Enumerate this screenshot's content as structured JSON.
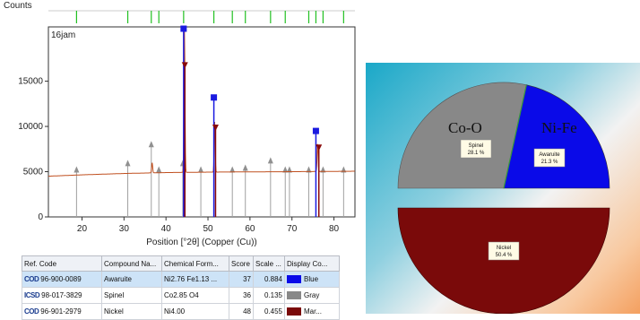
{
  "chart_data": [
    {
      "type": "line",
      "title": "",
      "sample_label": "16jam",
      "ylabel": "Counts",
      "xlabel": "Position [°2θ] (Copper (Cu))",
      "xlim": [
        12,
        85
      ],
      "ylim": [
        0,
        21000
      ],
      "x_ticks": [
        20,
        30,
        40,
        50,
        60,
        70,
        80
      ],
      "y_ticks": [
        0,
        5000,
        10000,
        15000
      ],
      "baseline": [
        [
          12,
          4500
        ],
        [
          20,
          4650
        ],
        [
          30,
          4800
        ],
        [
          40,
          4900
        ],
        [
          50,
          4950
        ],
        [
          60,
          4980
        ],
        [
          70,
          5000
        ],
        [
          85,
          5050
        ]
      ],
      "peaks": [
        {
          "x": 44.4,
          "y": 20500
        },
        {
          "x": 51.6,
          "y": 10500
        },
        {
          "x": 76.1,
          "y": 8100
        },
        {
          "x": 36.7,
          "y": 6000
        }
      ],
      "reference_markers": {
        "awaruite_blue": [
          {
            "x": 44.2,
            "y": 20800
          },
          {
            "x": 51.4,
            "y": 13200
          },
          {
            "x": 75.7,
            "y": 9500
          }
        ],
        "nickel_maroon": [
          {
            "x": 44.5,
            "y": 16800
          },
          {
            "x": 51.8,
            "y": 9900
          },
          {
            "x": 76.4,
            "y": 7700
          }
        ],
        "spinel_gray": [
          {
            "x": 18.7,
            "y": 5300
          },
          {
            "x": 30.9,
            "y": 6000
          },
          {
            "x": 36.5,
            "y": 8100
          },
          {
            "x": 38.3,
            "y": 5300
          },
          {
            "x": 44.0,
            "y": 6000
          },
          {
            "x": 48.3,
            "y": 5300
          },
          {
            "x": 55.8,
            "y": 5300
          },
          {
            "x": 58.9,
            "y": 5500
          },
          {
            "x": 64.9,
            "y": 6300
          },
          {
            "x": 68.4,
            "y": 5300
          },
          {
            "x": 69.4,
            "y": 5300
          },
          {
            "x": 74.0,
            "y": 5300
          },
          {
            "x": 77.4,
            "y": 5300
          },
          {
            "x": 82.3,
            "y": 5300
          }
        ]
      },
      "top_stick_positions": [
        18.7,
        30.9,
        36.5,
        38.3,
        44.2,
        51.4,
        55.8,
        58.9,
        64.9,
        68.4,
        74.0,
        75.7,
        77.4,
        82.3
      ]
    },
    {
      "type": "pie",
      "slices": [
        {
          "name": "Spinel",
          "percent": 28.1,
          "value_label": "28.1 %",
          "color": "#888888",
          "group_label": "Co-O"
        },
        {
          "name": "Awaruite",
          "percent": 21.3,
          "value_label": "21.3 %",
          "color": "#0a0ae8",
          "group_label": "Ni-Fe"
        },
        {
          "name": "Nickel",
          "percent": 50.4,
          "value_label": "50.4 %",
          "color": "#7a0a0a",
          "group_label": ""
        }
      ]
    }
  ],
  "table": {
    "headers": [
      "Ref. Code",
      "Compound Na...",
      "Chemical Form...",
      "Score",
      "Scale ...",
      "Display Co..."
    ],
    "rows": [
      {
        "source": "COD",
        "ref_code": "96-900-0089",
        "compound": "Awaruite",
        "formula": "Ni2.76 Fe1.13 ...",
        "score": "37",
        "scale": "0.884",
        "color_name": "Blue",
        "color": "#0a0ae8",
        "selected": true
      },
      {
        "source": "ICSD",
        "ref_code": "98-017-3829",
        "compound": "Spinel",
        "formula": "Co2.85 O4",
        "score": "36",
        "scale": "0.135",
        "color_name": "Gray",
        "color": "#888888",
        "selected": false
      },
      {
        "source": "COD",
        "ref_code": "96-901-2979",
        "compound": "Nickel",
        "formula": "Ni4.00",
        "score": "48",
        "scale": "0.455",
        "color_name": "Mar...",
        "color": "#7a0a0a",
        "selected": false
      }
    ]
  }
}
